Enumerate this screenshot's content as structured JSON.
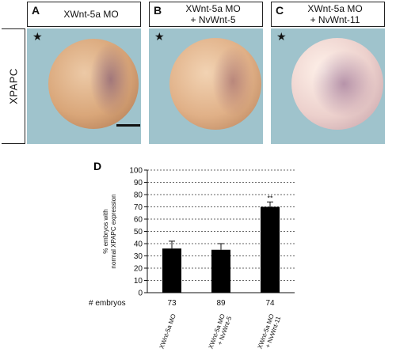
{
  "figure": {
    "side_label": "XPAPC",
    "panels": [
      {
        "letter": "A",
        "title_lines": [
          "XWnt-5a MO"
        ],
        "star": "★"
      },
      {
        "letter": "B",
        "title_lines": [
          "XWnt-5a MO",
          "+ NvWnt-5"
        ],
        "star": "★"
      },
      {
        "letter": "C",
        "title_lines": [
          "XWnt-5a MO",
          "+ NvWnt-11"
        ],
        "star": "★"
      }
    ],
    "chart_panel_letter": "D"
  },
  "chart_data": {
    "type": "bar",
    "categories": [
      "XWnt-5a MO",
      "XWnt-5a MO + NvWnt-5",
      "XWnt-5a MO + NvWnt-11"
    ],
    "category_lines": [
      [
        "XWnt-5a MO"
      ],
      [
        "XWnt-5a MO",
        "+ NvWnt-5"
      ],
      [
        "XWnt-5a MO",
        "+ NvWnt-11"
      ]
    ],
    "values": [
      36,
      35,
      70
    ],
    "errors": [
      6,
      5,
      4
    ],
    "annotations": [
      "",
      "",
      "**"
    ],
    "ylabel_lines": [
      "% embryos with",
      "normal XPAPC expression"
    ],
    "ylim": [
      0,
      100
    ],
    "yticks": [
      0,
      10,
      20,
      30,
      40,
      50,
      60,
      70,
      80,
      90,
      100
    ],
    "grid": true,
    "counts_label": "# embryos",
    "counts": [
      "73",
      "89",
      "74"
    ],
    "bar_color": "#000000"
  }
}
